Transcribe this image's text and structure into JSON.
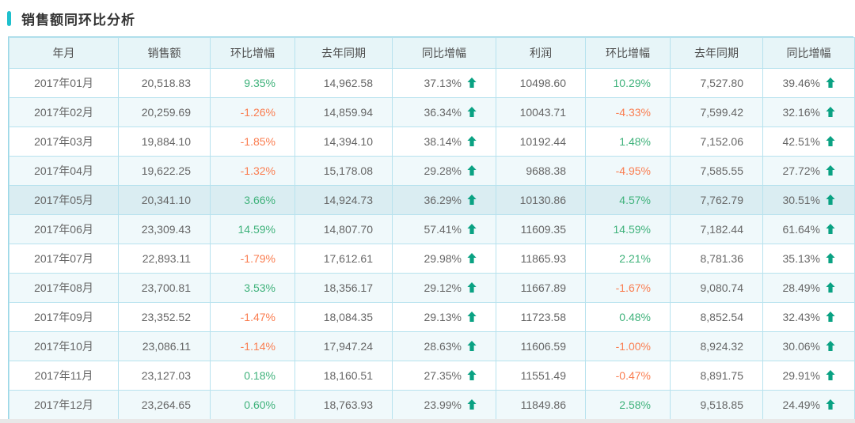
{
  "chart_data": {
    "type": "table",
    "title": "销售额同环比分析",
    "columns": [
      "年月",
      "销售额",
      "环比增幅",
      "去年同期",
      "同比增幅",
      "利润",
      "环比增幅",
      "去年同期",
      "同比增幅"
    ],
    "highlighted_row": "2017年05月",
    "rows": [
      {
        "month": "2017年01月",
        "sales": "20,518.83",
        "mom_sales": "9.35%",
        "last_year_sales": "14,962.58",
        "yoy_sales": {
          "value": "37.13%",
          "trend": "up"
        },
        "profit": "10498.60",
        "mom_profit": "10.29%",
        "last_year_profit": "7,527.80",
        "yoy_profit": {
          "value": "39.46%",
          "trend": "up"
        }
      },
      {
        "month": "2017年02月",
        "sales": "20,259.69",
        "mom_sales": "-1.26%",
        "last_year_sales": "14,859.94",
        "yoy_sales": {
          "value": "36.34%",
          "trend": "up"
        },
        "profit": "10043.71",
        "mom_profit": "-4.33%",
        "last_year_profit": "7,599.42",
        "yoy_profit": {
          "value": "32.16%",
          "trend": "up"
        }
      },
      {
        "month": "2017年03月",
        "sales": "19,884.10",
        "mom_sales": "-1.85%",
        "last_year_sales": "14,394.10",
        "yoy_sales": {
          "value": "38.14%",
          "trend": "up"
        },
        "profit": "10192.44",
        "mom_profit": "1.48%",
        "last_year_profit": "7,152.06",
        "yoy_profit": {
          "value": "42.51%",
          "trend": "up"
        }
      },
      {
        "month": "2017年04月",
        "sales": "19,622.25",
        "mom_sales": "-1.32%",
        "last_year_sales": "15,178.08",
        "yoy_sales": {
          "value": "29.28%",
          "trend": "up"
        },
        "profit": "9688.38",
        "mom_profit": "-4.95%",
        "last_year_profit": "7,585.55",
        "yoy_profit": {
          "value": "27.72%",
          "trend": "up"
        }
      },
      {
        "month": "2017年05月",
        "sales": "20,341.10",
        "mom_sales": "3.66%",
        "last_year_sales": "14,924.73",
        "yoy_sales": {
          "value": "36.29%",
          "trend": "up"
        },
        "profit": "10130.86",
        "mom_profit": "4.57%",
        "last_year_profit": "7,762.79",
        "yoy_profit": {
          "value": "30.51%",
          "trend": "up"
        }
      },
      {
        "month": "2017年06月",
        "sales": "23,309.43",
        "mom_sales": "14.59%",
        "last_year_sales": "14,807.70",
        "yoy_sales": {
          "value": "57.41%",
          "trend": "up"
        },
        "profit": "11609.35",
        "mom_profit": "14.59%",
        "last_year_profit": "7,182.44",
        "yoy_profit": {
          "value": "61.64%",
          "trend": "up"
        }
      },
      {
        "month": "2017年07月",
        "sales": "22,893.11",
        "mom_sales": "-1.79%",
        "last_year_sales": "17,612.61",
        "yoy_sales": {
          "value": "29.98%",
          "trend": "up"
        },
        "profit": "11865.93",
        "mom_profit": "2.21%",
        "last_year_profit": "8,781.36",
        "yoy_profit": {
          "value": "35.13%",
          "trend": "up"
        }
      },
      {
        "month": "2017年08月",
        "sales": "23,700.81",
        "mom_sales": "3.53%",
        "last_year_sales": "18,356.17",
        "yoy_sales": {
          "value": "29.12%",
          "trend": "up"
        },
        "profit": "11667.89",
        "mom_profit": "-1.67%",
        "last_year_profit": "9,080.74",
        "yoy_profit": {
          "value": "28.49%",
          "trend": "up"
        }
      },
      {
        "month": "2017年09月",
        "sales": "23,352.52",
        "mom_sales": "-1.47%",
        "last_year_sales": "18,084.35",
        "yoy_sales": {
          "value": "29.13%",
          "trend": "up"
        },
        "profit": "11723.58",
        "mom_profit": "0.48%",
        "last_year_profit": "8,852.54",
        "yoy_profit": {
          "value": "32.43%",
          "trend": "up"
        }
      },
      {
        "month": "2017年10月",
        "sales": "23,086.11",
        "mom_sales": "-1.14%",
        "last_year_sales": "17,947.24",
        "yoy_sales": {
          "value": "28.63%",
          "trend": "up"
        },
        "profit": "11606.59",
        "mom_profit": "-1.00%",
        "last_year_profit": "8,924.32",
        "yoy_profit": {
          "value": "30.06%",
          "trend": "up"
        }
      },
      {
        "month": "2017年11月",
        "sales": "23,127.03",
        "mom_sales": "0.18%",
        "last_year_sales": "18,160.51",
        "yoy_sales": {
          "value": "27.35%",
          "trend": "up"
        },
        "profit": "11551.49",
        "mom_profit": "-0.47%",
        "last_year_profit": "8,891.75",
        "yoy_profit": {
          "value": "29.91%",
          "trend": "up"
        }
      },
      {
        "month": "2017年12月",
        "sales": "23,264.65",
        "mom_sales": "0.60%",
        "last_year_sales": "18,763.93",
        "yoy_sales": {
          "value": "23.99%",
          "trend": "up"
        },
        "profit": "11849.86",
        "mom_profit": "2.58%",
        "last_year_profit": "9,518.85",
        "yoy_profit": {
          "value": "24.49%",
          "trend": "up"
        }
      }
    ]
  },
  "colors": {
    "accent": "#1ec0cd",
    "positive_green": "#3fb27b",
    "negative_orange": "#fa7d50",
    "arrow_green": "#0aa283",
    "header_bg": "#e7f5f8",
    "stripe_bg": "#f0f9fb",
    "highlight_bg": "#daedf2",
    "border": "#b7e2ee"
  },
  "icons": {
    "trend_up": "arrow-up-icon"
  }
}
